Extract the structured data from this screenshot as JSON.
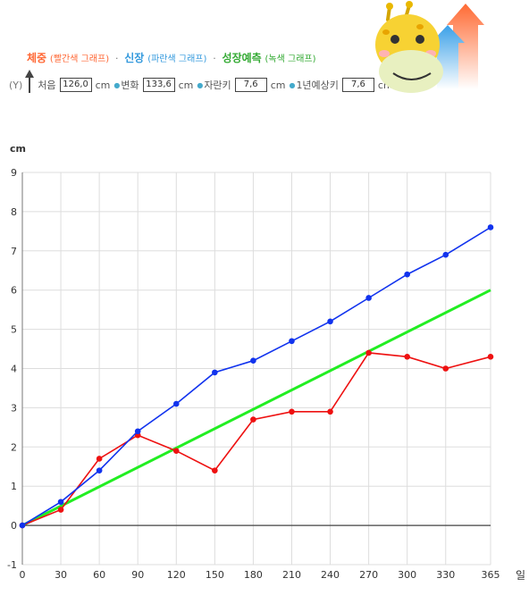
{
  "legend": {
    "weight": "체중",
    "weight_sub": "(빨간색 그래프)",
    "height": "신장",
    "height_sub": "(파란색 그래프)",
    "pred": "성장예측",
    "pred_sub": "(녹색 그래프)",
    "sep": "·"
  },
  "stats": {
    "y_label": "(Y)",
    "first_label": "처음",
    "first_value": "126,0",
    "first_unit": "cm",
    "change_label": "변화",
    "change_value": "133,6",
    "change_unit": "cm",
    "grow_label": "자란키",
    "grow_value": "7,6",
    "grow_unit": "cm",
    "yearly_label": "1년예상키",
    "yearly_value": "7,6",
    "yearly_unit": "cm"
  },
  "mascot": {
    "icon": "giraffe-mascot-icon"
  },
  "chart_data": {
    "type": "line",
    "ylabel": "cm",
    "xlabel": "일",
    "xlim": [
      0,
      365
    ],
    "ylim": [
      -1,
      9
    ],
    "x_ticks": [
      0,
      30,
      60,
      90,
      120,
      150,
      180,
      210,
      240,
      270,
      300,
      330,
      365
    ],
    "y_ticks": [
      -1,
      0,
      1,
      2,
      3,
      4,
      5,
      6,
      7,
      8,
      9
    ],
    "grid": true,
    "series": [
      {
        "color": "#1133ee",
        "markers": true,
        "x": [
          0,
          30,
          60,
          90,
          120,
          150,
          180,
          210,
          240,
          270,
          300,
          330,
          365
        ],
        "y": [
          0,
          0.6,
          1.4,
          2.4,
          3.1,
          3.9,
          4.2,
          4.7,
          5.2,
          5.8,
          6.4,
          6.9,
          7.6
        ]
      },
      {
        "color": "#ee1111",
        "markers": true,
        "x": [
          0,
          30,
          60,
          90,
          120,
          150,
          180,
          210,
          240,
          270,
          300,
          330,
          365
        ],
        "y": [
          0,
          0.4,
          1.7,
          2.3,
          1.9,
          1.4,
          2.7,
          2.9,
          2.9,
          4.4,
          4.3,
          4.0,
          4.3
        ]
      },
      {
        "color": "#22ee22",
        "markers": false,
        "x": [
          0,
          365
        ],
        "y": [
          0,
          6.0
        ]
      }
    ]
  }
}
